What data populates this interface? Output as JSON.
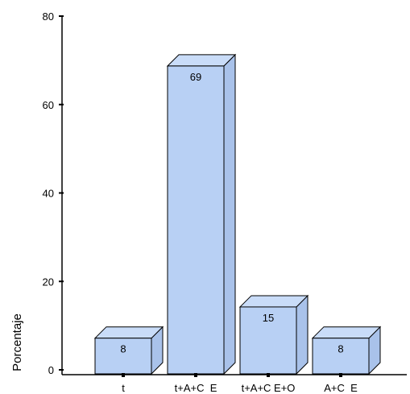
{
  "chart_data": {
    "type": "bar",
    "style": "3d",
    "categories": [
      "t",
      "t+A+C  E",
      "t+A+C E+O",
      "A+C  E"
    ],
    "values": [
      8,
      69,
      15,
      8
    ],
    "data_labels": [
      "8",
      "69",
      "15",
      "8"
    ],
    "title": "",
    "xlabel": "",
    "ylabel": "Porcentaje",
    "ylim": [
      0,
      80
    ],
    "yticks": [
      0,
      20,
      40,
      60,
      80
    ],
    "ytick_labels": [
      "0",
      "20",
      "40",
      "60",
      "80"
    ],
    "grid": false,
    "legend": "none",
    "colors": {
      "bar_front": "#b8d0f4",
      "bar_top": "#c9dcf8",
      "bar_side": "#a9c2ea",
      "outline": "#000000",
      "axis": "#000000"
    }
  }
}
